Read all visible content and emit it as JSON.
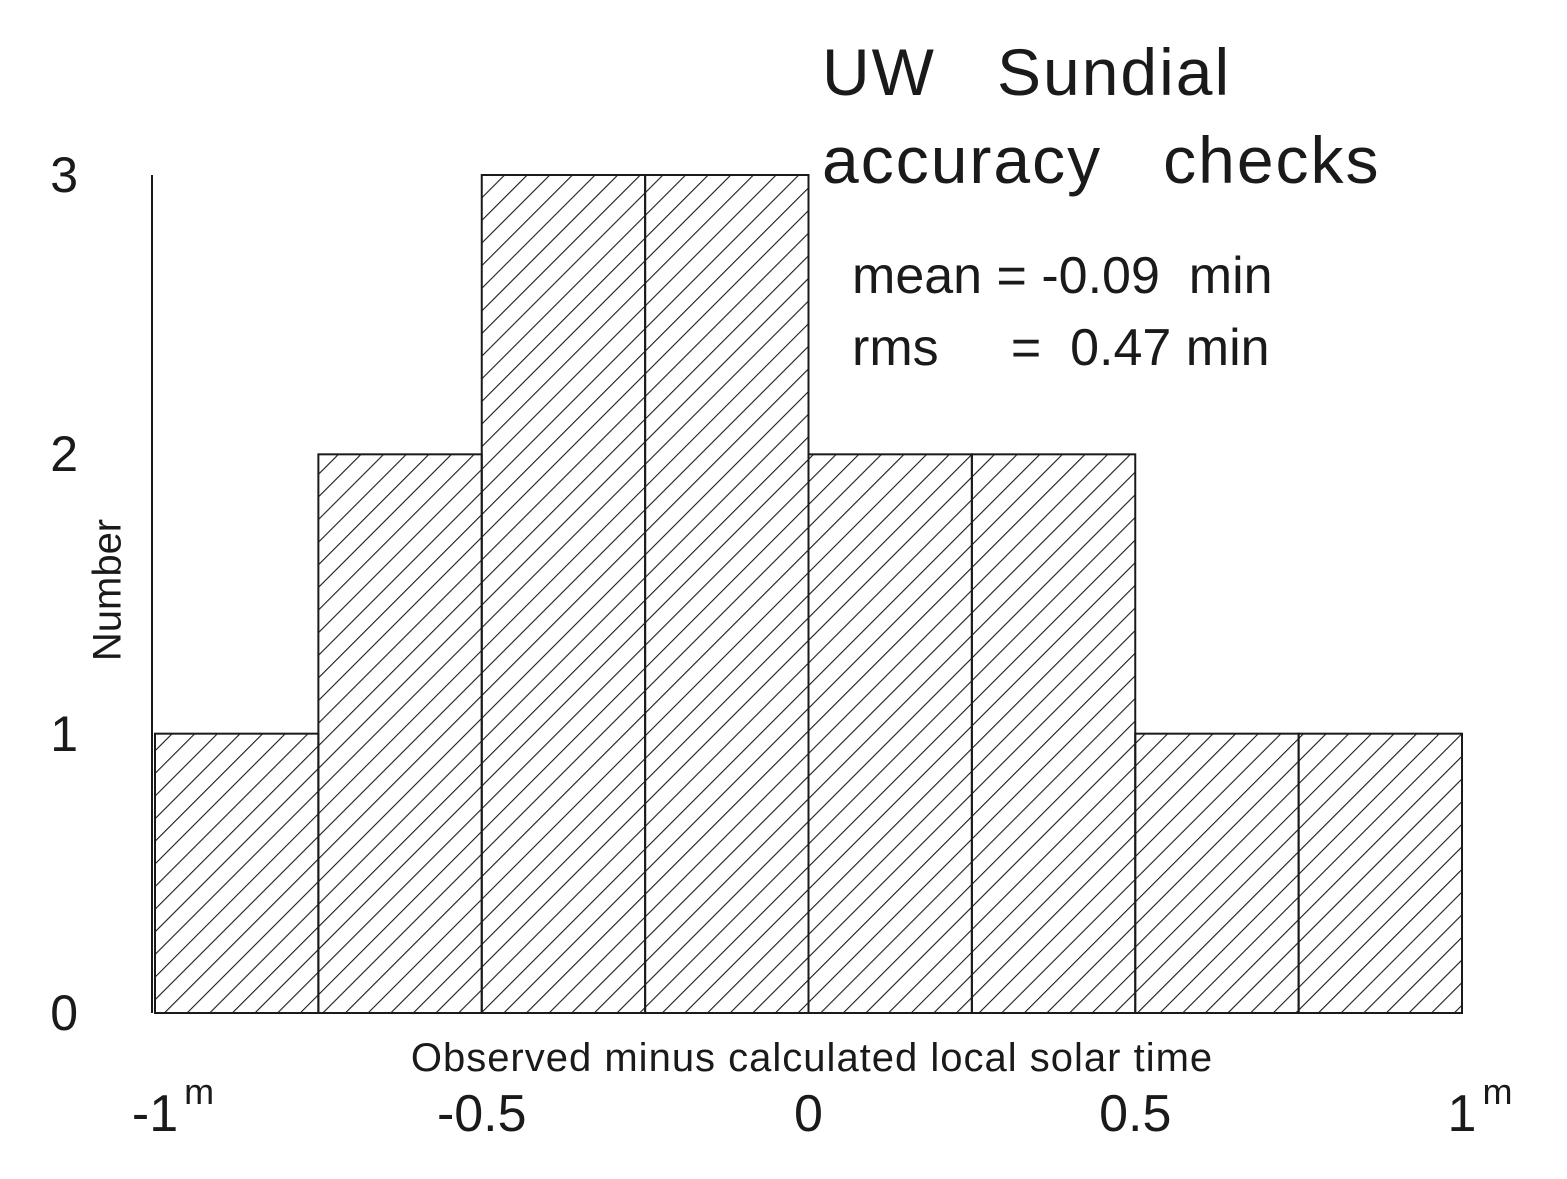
{
  "chart_data": {
    "type": "bar",
    "title": "UW  Sundial accuracy  checks",
    "title_lines": [
      "UW   Sundial",
      "accuracy   checks"
    ],
    "annotations": [
      "mean = -0.09  min",
      "rms     =  0.47 min"
    ],
    "xlabel": "Observed minus calculated local solar time",
    "ylabel": "Number",
    "bin_edges": [
      -1,
      -0.75,
      -0.5,
      -0.25,
      0,
      0.25,
      0.5,
      0.75,
      1
    ],
    "values": [
      1,
      2,
      3,
      3,
      2,
      2,
      1,
      1
    ],
    "xlim": [
      -1,
      1
    ],
    "ylim": [
      0,
      3
    ],
    "x_ticks": [
      {
        "value": -1,
        "label": "-1",
        "sup": "m"
      },
      {
        "value": -0.5,
        "label": "-0.5",
        "sup": ""
      },
      {
        "value": 0,
        "label": "0",
        "sup": ""
      },
      {
        "value": 0.5,
        "label": "0.5",
        "sup": ""
      },
      {
        "value": 1,
        "label": "1",
        "sup": "m"
      }
    ],
    "y_ticks": [
      {
        "value": 0,
        "label": "0"
      },
      {
        "value": 1,
        "label": "1"
      },
      {
        "value": 2,
        "label": "2"
      },
      {
        "value": 3,
        "label": "3"
      }
    ],
    "fill": "diagonal-hatch",
    "grid": false,
    "colors": {
      "ink": "#1a1a1a",
      "background": "#ffffff"
    }
  }
}
